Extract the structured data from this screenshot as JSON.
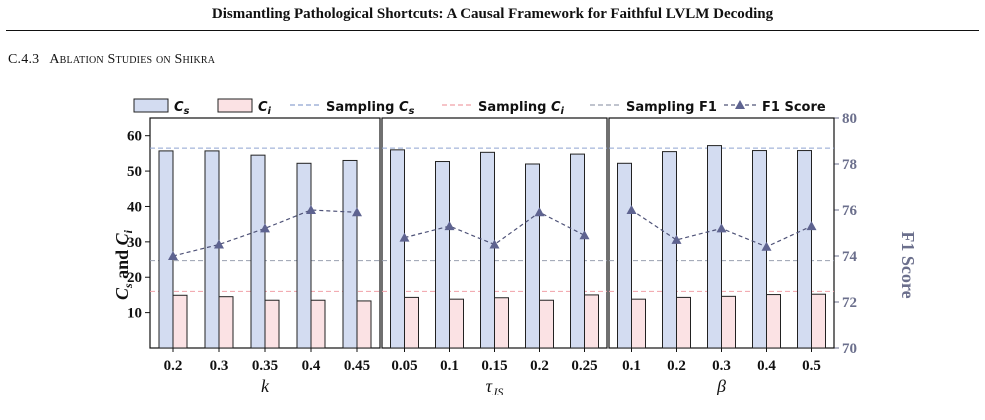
{
  "paper": {
    "running_head": "Dismantling Pathological Shortcuts: A Causal Framework for Faithful LVLM Decoding",
    "section_number": "C.4.3",
    "section_title": "Ablation Studies on Shikra"
  },
  "chart_data": {
    "type": "bar",
    "legend": {
      "cs": "C_s",
      "ci": "C_i",
      "sampling_cs": "Sampling C_s",
      "sampling_ci": "Sampling C_i",
      "sampling_f1": "Sampling F1",
      "f1": "F1 Score"
    },
    "ylabel_left": "C_s and C_i",
    "ylabel_right": "F1 Score",
    "ylim_left": [
      0,
      65
    ],
    "ylim_right": [
      70,
      80
    ],
    "yticks_left": [
      10,
      20,
      30,
      40,
      50,
      60
    ],
    "yticks_right": [
      70,
      72,
      74,
      76,
      78,
      80
    ],
    "grid": false,
    "legend_placement": "top",
    "reference_lines": {
      "sampling_cs": 56.5,
      "sampling_ci": 16.0,
      "sampling_f1": 73.8
    },
    "colors": {
      "cs_fill": "#d3dcf1",
      "ci_fill": "#fbe2e4",
      "sampling_cs_line": "#8fa3d1",
      "sampling_ci_line": "#f0a0a8",
      "sampling_f1_line": "#9aa0b0",
      "f1_line": "#4f5378",
      "bar_edge": "#222222"
    },
    "panels": [
      {
        "xlabel": "k",
        "xlabel_sub": "",
        "categories": [
          "0.2",
          "0.3",
          "0.35",
          "0.4",
          "0.45"
        ],
        "cs": [
          55.7,
          55.7,
          54.5,
          52.2,
          53.0
        ],
        "ci": [
          14.9,
          14.5,
          13.5,
          13.5,
          13.3
        ],
        "f1": [
          74.0,
          74.5,
          75.2,
          76.0,
          75.9
        ]
      },
      {
        "xlabel": "τ",
        "xlabel_sub": "JS",
        "categories": [
          "0.05",
          "0.1",
          "0.15",
          "0.2",
          "0.25"
        ],
        "cs": [
          56.0,
          52.7,
          55.3,
          52.0,
          54.8
        ],
        "ci": [
          14.3,
          13.8,
          14.2,
          13.5,
          15.0
        ],
        "f1": [
          74.8,
          75.3,
          74.5,
          75.9,
          74.9
        ]
      },
      {
        "xlabel": "β",
        "xlabel_sub": "",
        "categories": [
          "0.1",
          "0.2",
          "0.3",
          "0.4",
          "0.5"
        ],
        "cs": [
          52.2,
          55.5,
          57.2,
          55.8,
          55.8
        ],
        "ci": [
          13.8,
          14.3,
          14.6,
          15.1,
          15.2
        ],
        "f1": [
          76.0,
          74.7,
          75.2,
          74.4,
          75.3
        ]
      }
    ]
  }
}
